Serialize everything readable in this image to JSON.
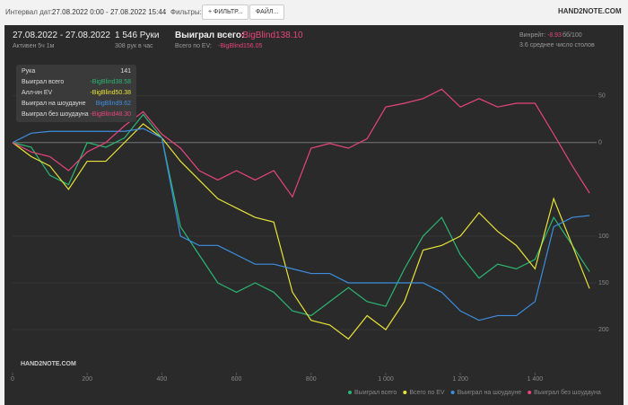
{
  "toolbar": {
    "date_label": "Интервал дат:",
    "date_range": "27.08.2022 0:00 - 27.08.2022 15:44",
    "filters_label": "Фильтры:",
    "filter_button": "+ ФИЛЬТР...",
    "file_button": "ФАЙЛ...",
    "logo": "HAND2NOTE.COM"
  },
  "header": {
    "period": "27.08.2022 - 27.08.2022",
    "active": "Активен 5ч 1м",
    "hands": "1 546 Руки",
    "per_hour": "308 рук в час",
    "won_label": "Выиграл всего:",
    "won_value": "-BigBlind138.10",
    "ev_label": "Всего по EV:",
    "ev_value": "-BigBlind156.05",
    "winrate_label": "Винрейт:",
    "winrate_value": "-8.93",
    "winrate_unit": "бб/100",
    "tables": "3.6 среднее число столов"
  },
  "tooltip": {
    "rows": [
      [
        "Рука",
        "141"
      ],
      [
        "Выиграл всего",
        "-BigBlind38.58"
      ],
      [
        "Алл-ин EV",
        "-BigBlind50.38"
      ],
      [
        "Выиграл на шоудауне",
        "BigBlind9.62"
      ],
      [
        "Выиграл без шоудауна",
        "-BigBlind48.30"
      ]
    ]
  },
  "chart_logo": "HAND2NOTE.COM",
  "chart_data": {
    "type": "line",
    "x": [
      0,
      50,
      100,
      150,
      200,
      250,
      300,
      350,
      400,
      450,
      500,
      550,
      600,
      650,
      700,
      750,
      800,
      850,
      900,
      950,
      1000,
      1050,
      1100,
      1150,
      1200,
      1250,
      1300,
      1350,
      1400,
      1450,
      1500,
      1546
    ],
    "xlim": [
      0,
      1565
    ],
    "ylim": [
      -246,
      66
    ],
    "xticks": [
      0,
      200,
      400,
      600,
      800,
      {
        "value": 1000,
        "label": "1 000"
      },
      {
        "value": 1200,
        "label": "1 200"
      },
      {
        "value": 1400,
        "label": "1 400"
      }
    ],
    "yticks": [
      50,
      0,
      {
        "value": -100,
        "label": "100"
      },
      {
        "value": -150,
        "label": "150"
      },
      {
        "value": -200,
        "label": "200"
      }
    ],
    "grid": true,
    "series": [
      {
        "name": "Выиграл всего",
        "color": "#2bb673",
        "values": [
          0,
          -5,
          -35,
          -45,
          0,
          -5,
          5,
          30,
          5,
          -90,
          -120,
          -150,
          -160,
          -150,
          -160,
          -180,
          -185,
          -170,
          -155,
          -170,
          -175,
          -135,
          -100,
          -80,
          -120,
          -145,
          -130,
          -135,
          -125,
          -80,
          -110,
          -138.1
        ]
      },
      {
        "name": "Всего по EV",
        "color": "#e8e337",
        "values": [
          0,
          -15,
          -25,
          -50,
          -20,
          -20,
          0,
          20,
          5,
          -20,
          -40,
          -60,
          -70,
          -80,
          -85,
          -160,
          -190,
          -195,
          -210,
          -185,
          -200,
          -170,
          -115,
          -110,
          -100,
          -75,
          -95,
          -110,
          -135,
          -60,
          -110,
          -156.05
        ]
      },
      {
        "name": "Выиграл на шоудауне",
        "color": "#3d8ee0",
        "values": [
          0,
          10,
          12,
          12,
          12,
          12,
          12,
          15,
          5,
          -100,
          -110,
          -110,
          -120,
          -130,
          -130,
          -135,
          -140,
          -140,
          -150,
          -150,
          -150,
          -150,
          -150,
          -160,
          -180,
          -190,
          -185,
          -185,
          -170,
          -90,
          -80,
          -78
        ]
      },
      {
        "name": "Выиграл без шоудауна",
        "color": "#e8457a",
        "values": [
          0,
          -10,
          -15,
          -30,
          -10,
          0,
          18,
          33,
          9,
          -6,
          -30,
          -40,
          -30,
          -40,
          -30,
          -58,
          -6,
          -1,
          -6,
          4,
          38,
          42,
          47,
          57,
          38,
          47,
          38,
          42,
          42,
          9,
          -25,
          -54
        ]
      }
    ]
  }
}
